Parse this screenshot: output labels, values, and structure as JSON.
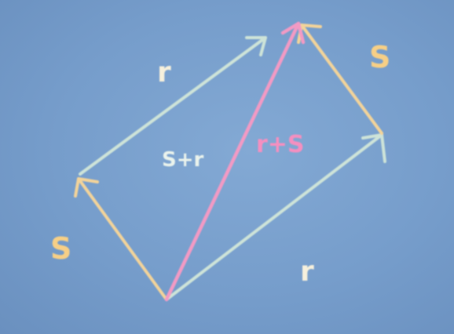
{
  "diagram": {
    "labels": {
      "s_left": "S",
      "r_top": "r",
      "s_plus_r": "S+r",
      "r_plus_s": "r+S",
      "s_right": "S",
      "r_bottom": "r"
    },
    "colors": {
      "background": "#7ca3cf",
      "vector_r": "#cde3d8",
      "vector_s": "#f2d39a",
      "vector_sum": "#f29ac4",
      "label_r": "#f6f0dc",
      "label_s": "#f6cf86",
      "label_sum_top": "#eaf3ec",
      "label_sum_bottom": "#f48fc0"
    }
  }
}
